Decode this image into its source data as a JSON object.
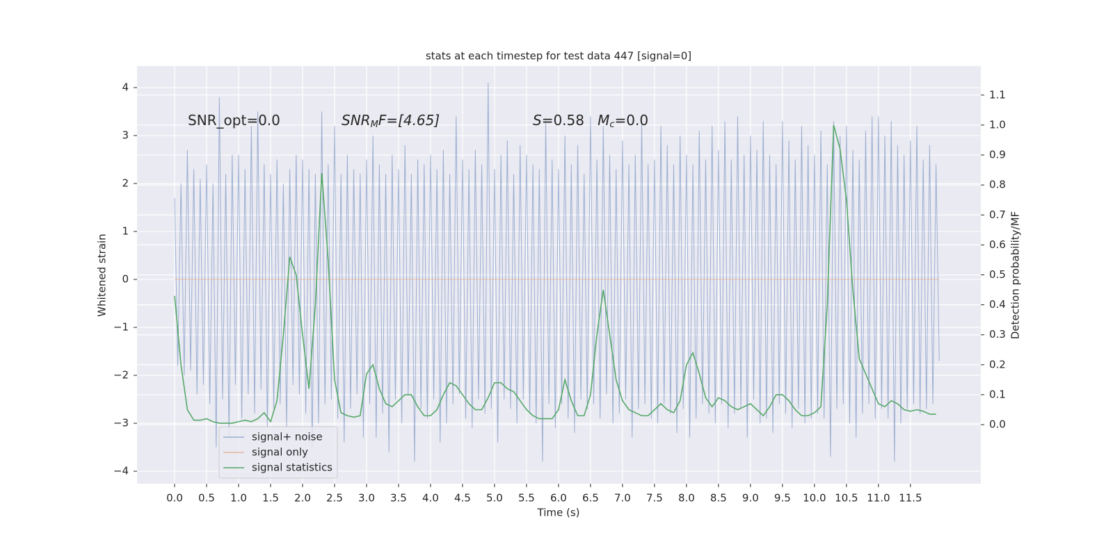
{
  "chart_data": {
    "type": "line",
    "title": "stats at each timestep for test data 447 [signal=0]",
    "xlabel": "Time (s)",
    "ylabel": "Whitened strain",
    "y2label": "Detection probability/MF",
    "annotations": [
      [
        "SNR_opt=0.0"
      ],
      [
        "SNR",
        "M",
        "F=[4.65]"
      ],
      [
        "S",
        "=0.58   ",
        "M",
        "c",
        "=0.0"
      ]
    ],
    "grid": true,
    "legend": "lower left",
    "xlim": [
      -0.587,
      12.6
    ],
    "ylim": [
      -4.26,
      4.45
    ],
    "y2lim": [
      -0.197,
      1.197
    ],
    "xticks": [
      {
        "value": 0,
        "label": "0.0"
      },
      0.5,
      {
        "value": 1,
        "label": "1.0"
      },
      1.5,
      {
        "value": 2,
        "label": "2.0"
      },
      2.5,
      {
        "value": 3,
        "label": "3.0"
      },
      3.5,
      {
        "value": 4,
        "label": "4.0"
      },
      4.5,
      {
        "value": 5,
        "label": "5.0"
      },
      5.5,
      {
        "value": 6,
        "label": "6.0"
      },
      6.5,
      {
        "value": 7,
        "label": "7.0"
      },
      7.5,
      {
        "value": 8,
        "label": "8.0"
      },
      8.5,
      {
        "value": 9,
        "label": "9.0"
      },
      9.5,
      {
        "value": 10,
        "label": "10.0"
      },
      10.5,
      {
        "value": 11,
        "label": "11.0"
      },
      11.5
    ],
    "yticks": [
      {
        "value": -4,
        "label": "−4"
      },
      {
        "value": -3,
        "label": "−3"
      },
      {
        "value": -2,
        "label": "−2"
      },
      {
        "value": -1,
        "label": "−1"
      },
      0,
      1,
      2,
      3,
      4
    ],
    "y2ticks": [
      {
        "value": 0,
        "label": "0.0"
      },
      0.1,
      0.2,
      0.3,
      0.4,
      0.5,
      0.6,
      0.7,
      0.8,
      0.9,
      {
        "value": 1,
        "label": "1.0"
      },
      1.1
    ],
    "series": [
      {
        "name": "signal+ noise",
        "color": "#4c72b0",
        "x": [
          0,
          0.05,
          0.1,
          0.15,
          0.2,
          0.25,
          0.3,
          0.35,
          0.4,
          0.45,
          0.5,
          0.55,
          0.6,
          0.65,
          0.7,
          0.75,
          0.8,
          0.85,
          0.9,
          0.95,
          1,
          1.05,
          1.1,
          1.15,
          1.2,
          1.25,
          1.3,
          1.35,
          1.4,
          1.45,
          1.5,
          1.55,
          1.6,
          1.65,
          1.7,
          1.75,
          1.8,
          1.85,
          1.9,
          1.95,
          2,
          2.05,
          2.1,
          2.15,
          2.2,
          2.25,
          2.3,
          2.35,
          2.4,
          2.45,
          2.5,
          2.55,
          2.6,
          2.65,
          2.7,
          2.75,
          2.8,
          2.85,
          2.9,
          2.95,
          3,
          3.05,
          3.1,
          3.15,
          3.2,
          3.25,
          3.3,
          3.35,
          3.4,
          3.45,
          3.5,
          3.55,
          3.6,
          3.65,
          3.7,
          3.75,
          3.8,
          3.85,
          3.9,
          3.95,
          4,
          4.05,
          4.1,
          4.15,
          4.2,
          4.25,
          4.3,
          4.35,
          4.4,
          4.45,
          4.5,
          4.55,
          4.6,
          4.65,
          4.7,
          4.75,
          4.8,
          4.85,
          4.9,
          4.95,
          5,
          5.05,
          5.1,
          5.15,
          5.2,
          5.25,
          5.3,
          5.35,
          5.4,
          5.45,
          5.5,
          5.55,
          5.6,
          5.65,
          5.7,
          5.75,
          5.8,
          5.85,
          5.9,
          5.95,
          6,
          6.05,
          6.1,
          6.15,
          6.2,
          6.25,
          6.3,
          6.35,
          6.4,
          6.45,
          6.5,
          6.55,
          6.6,
          6.65,
          6.7,
          6.75,
          6.8,
          6.85,
          6.9,
          6.95,
          7,
          7.05,
          7.1,
          7.15,
          7.2,
          7.25,
          7.3,
          7.35,
          7.4,
          7.45,
          7.5,
          7.55,
          7.6,
          7.65,
          7.7,
          7.75,
          7.8,
          7.85,
          7.9,
          7.95,
          8,
          8.05,
          8.1,
          8.15,
          8.2,
          8.25,
          8.3,
          8.35,
          8.4,
          8.45,
          8.5,
          8.55,
          8.6,
          8.65,
          8.7,
          8.75,
          8.8,
          8.85,
          8.9,
          8.95,
          9,
          9.05,
          9.1,
          9.15,
          9.2,
          9.25,
          9.3,
          9.35,
          9.4,
          9.45,
          9.5,
          9.55,
          9.6,
          9.65,
          9.7,
          9.75,
          9.8,
          9.85,
          9.9,
          9.95,
          10,
          10.05,
          10.1,
          10.15,
          10.2,
          10.25,
          10.3,
          10.35,
          10.4,
          10.45,
          10.5,
          10.55,
          10.6,
          10.65,
          10.7,
          10.75,
          10.8,
          10.85,
          10.9,
          10.95,
          11,
          11.05,
          11.1,
          11.15,
          11.2,
          11.25,
          11.3,
          11.35,
          11.4,
          11.45,
          11.5,
          11.55,
          11.6,
          11.65,
          11.7,
          11.75,
          11.8,
          11.85,
          11.9,
          11.95
        ],
        "values": [
          1.7,
          -1.8,
          2.0,
          -2.0,
          2.7,
          -1.9,
          2.3,
          -2.4,
          2.1,
          -2.2,
          2.4,
          -2.6,
          2.0,
          -3.5,
          3.8,
          -2.5,
          2.2,
          -3.3,
          2.6,
          -2.2,
          2.6,
          -2.9,
          2.3,
          -2.4,
          3.2,
          -2.8,
          3.5,
          -2.3,
          2.4,
          -3.1,
          2.2,
          -2.7,
          2.5,
          -2.6,
          2.0,
          -3.1,
          2.3,
          -2.2,
          2.6,
          -2.4,
          2.5,
          -2.8,
          2.3,
          -3.5,
          2.2,
          -3.0,
          3.5,
          -2.6,
          2.4,
          -2.5,
          3.2,
          -2.9,
          2.2,
          -3.4,
          2.6,
          -2.7,
          2.3,
          -2.4,
          2.2,
          -3.3,
          2.5,
          -2.6,
          3.0,
          -3.3,
          2.4,
          -2.8,
          2.2,
          -3.6,
          2.6,
          -2.5,
          2.3,
          -3.0,
          2.8,
          -2.4,
          2.2,
          -3.8,
          2.5,
          -2.7,
          2.4,
          -2.9,
          2.6,
          -2.5,
          2.3,
          -3.4,
          2.7,
          -3.0,
          2.2,
          -2.6,
          3.4,
          -2.4,
          2.5,
          -2.9,
          2.3,
          -3.1,
          2.7,
          -2.5,
          2.4,
          -2.8,
          4.1,
          -2.7,
          2.3,
          -3.4,
          2.6,
          -2.5,
          2.9,
          -2.7,
          2.2,
          -3.0,
          2.8,
          -2.5,
          2.6,
          -2.8,
          2.4,
          -3.0,
          2.3,
          -3.8,
          3.3,
          -2.6,
          2.5,
          -3.1,
          2.3,
          -2.6,
          3.0,
          -2.9,
          2.4,
          -3.2,
          2.8,
          -2.5,
          2.2,
          -2.7,
          3.4,
          -2.6,
          2.5,
          -2.9,
          3.2,
          -2.4,
          2.6,
          -3.0,
          2.3,
          -2.8,
          2.9,
          -2.5,
          2.4,
          -3.3,
          2.6,
          -2.7,
          3.3,
          -2.6,
          2.4,
          -2.9,
          2.5,
          -3.0,
          3.2,
          -2.6,
          2.8,
          -2.8,
          2.4,
          -3.2,
          3.0,
          -2.7,
          2.6,
          -3.3,
          2.4,
          -2.9,
          3.1,
          -2.6,
          2.5,
          -2.8,
          3.2,
          -3.0,
          2.7,
          -2.6,
          3.3,
          -3.1,
          2.5,
          -2.8,
          3.4,
          -2.7,
          2.6,
          -3.3,
          3.0,
          -2.5,
          2.7,
          -3.0,
          3.3,
          -2.9,
          2.6,
          -3.2,
          2.4,
          -2.6,
          3.3,
          -2.8,
          2.9,
          -3.1,
          2.5,
          -2.7,
          3.2,
          -3.0,
          2.8,
          -2.9,
          2.6,
          -2.8,
          3.1,
          -2.9,
          2.4,
          -3.7,
          3.3,
          -2.7,
          3.0,
          -2.6,
          3.2,
          -3.0,
          2.7,
          -3.3,
          2.5,
          -2.8,
          3.1,
          -2.6,
          3.4,
          -2.9,
          3.4,
          -2.7,
          3.0,
          -2.9,
          3.3,
          -3.8,
          2.8,
          -3.0,
          2.6,
          -2.7,
          2.9,
          -2.6,
          3.2,
          -2.8,
          2.5,
          -2.7,
          2.8,
          -2.6,
          2.4,
          -1.7
        ]
      },
      {
        "name": "signal only",
        "color": "#dd8452",
        "x": [
          0,
          11.95
        ],
        "values": [
          0,
          0
        ]
      },
      {
        "name": "signal statistics",
        "color": "#55a868",
        "axis": "y2",
        "x": [
          0,
          0.1,
          0.2,
          0.3,
          0.4,
          0.5,
          0.6,
          0.7,
          0.8,
          0.9,
          1,
          1.1,
          1.2,
          1.3,
          1.4,
          1.5,
          1.6,
          1.7,
          1.8,
          1.9,
          2,
          2.1,
          2.2,
          2.3,
          2.4,
          2.5,
          2.6,
          2.7,
          2.8,
          2.9,
          3,
          3.1,
          3.2,
          3.3,
          3.4,
          3.5,
          3.6,
          3.7,
          3.8,
          3.9,
          4,
          4.1,
          4.2,
          4.3,
          4.4,
          4.5,
          4.6,
          4.7,
          4.8,
          4.9,
          5,
          5.1,
          5.2,
          5.3,
          5.4,
          5.5,
          5.6,
          5.7,
          5.8,
          5.9,
          6,
          6.1,
          6.2,
          6.3,
          6.4,
          6.5,
          6.6,
          6.7,
          6.8,
          6.9,
          7,
          7.1,
          7.2,
          7.3,
          7.4,
          7.5,
          7.6,
          7.7,
          7.8,
          7.9,
          8,
          8.1,
          8.2,
          8.3,
          8.4,
          8.5,
          8.6,
          8.7,
          8.8,
          8.9,
          9,
          9.1,
          9.2,
          9.3,
          9.4,
          9.5,
          9.6,
          9.7,
          9.8,
          9.9,
          10,
          10.1,
          10.2,
          10.3,
          10.4,
          10.5,
          10.6,
          10.7,
          10.8,
          10.9,
          11,
          11.1,
          11.2,
          11.3,
          11.4,
          11.5,
          11.6,
          11.7,
          11.8,
          11.9
        ],
        "values": [
          0.43,
          0.2,
          0.05,
          0.015,
          0.015,
          0.02,
          0.01,
          0.005,
          0.005,
          0.005,
          0.01,
          0.015,
          0.01,
          0.02,
          0.04,
          0.01,
          0.08,
          0.3,
          0.56,
          0.5,
          0.3,
          0.12,
          0.4,
          0.84,
          0.55,
          0.15,
          0.04,
          0.03,
          0.025,
          0.03,
          0.17,
          0.2,
          0.12,
          0.07,
          0.06,
          0.08,
          0.1,
          0.1,
          0.06,
          0.03,
          0.03,
          0.05,
          0.1,
          0.14,
          0.13,
          0.1,
          0.07,
          0.05,
          0.05,
          0.09,
          0.14,
          0.14,
          0.12,
          0.11,
          0.08,
          0.05,
          0.03,
          0.02,
          0.02,
          0.02,
          0.05,
          0.15,
          0.08,
          0.03,
          0.03,
          0.1,
          0.3,
          0.45,
          0.3,
          0.15,
          0.08,
          0.05,
          0.04,
          0.03,
          0.03,
          0.05,
          0.07,
          0.05,
          0.04,
          0.08,
          0.2,
          0.24,
          0.17,
          0.09,
          0.06,
          0.09,
          0.08,
          0.06,
          0.05,
          0.06,
          0.07,
          0.05,
          0.03,
          0.06,
          0.1,
          0.1,
          0.08,
          0.05,
          0.03,
          0.03,
          0.04,
          0.06,
          0.4,
          1.0,
          0.92,
          0.75,
          0.45,
          0.22,
          0.17,
          0.12,
          0.07,
          0.06,
          0.08,
          0.07,
          0.05,
          0.045,
          0.05,
          0.045,
          0.035,
          0.035
        ]
      }
    ]
  }
}
